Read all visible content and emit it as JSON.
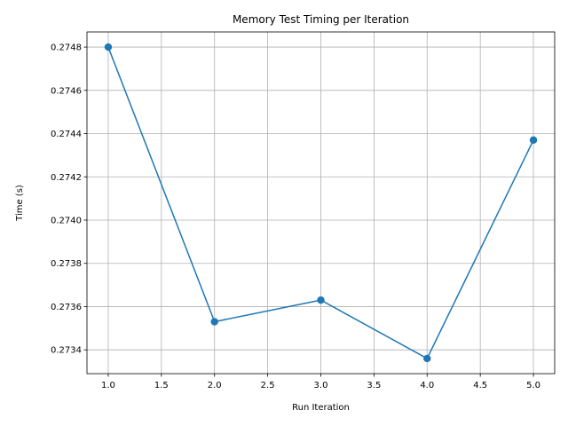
{
  "chart_data": {
    "type": "line",
    "title": "Memory Test Timing per Iteration",
    "xlabel": "Run Iteration",
    "ylabel": "Time (s)",
    "xlim": [
      0.8,
      5.2
    ],
    "ylim": [
      0.27329,
      0.27487
    ],
    "xticks": [
      1.0,
      1.5,
      2.0,
      2.5,
      3.0,
      3.5,
      4.0,
      4.5,
      5.0
    ],
    "xtick_labels": [
      "1.0",
      "1.5",
      "2.0",
      "2.5",
      "3.0",
      "3.5",
      "4.0",
      "4.5",
      "5.0"
    ],
    "yticks": [
      0.2734,
      0.2736,
      0.2738,
      0.274,
      0.2742,
      0.2744,
      0.2746,
      0.2748
    ],
    "ytick_labels": [
      "0.2734",
      "0.2736",
      "0.2738",
      "0.2740",
      "0.2742",
      "0.2744",
      "0.2746",
      "0.2748"
    ],
    "grid": true,
    "series": [
      {
        "color": "#1f77b4",
        "marker": "circle",
        "x": [
          1,
          2,
          3,
          4,
          5
        ],
        "y": [
          0.2748,
          0.27353,
          0.27363,
          0.27336,
          0.27437
        ]
      }
    ]
  }
}
